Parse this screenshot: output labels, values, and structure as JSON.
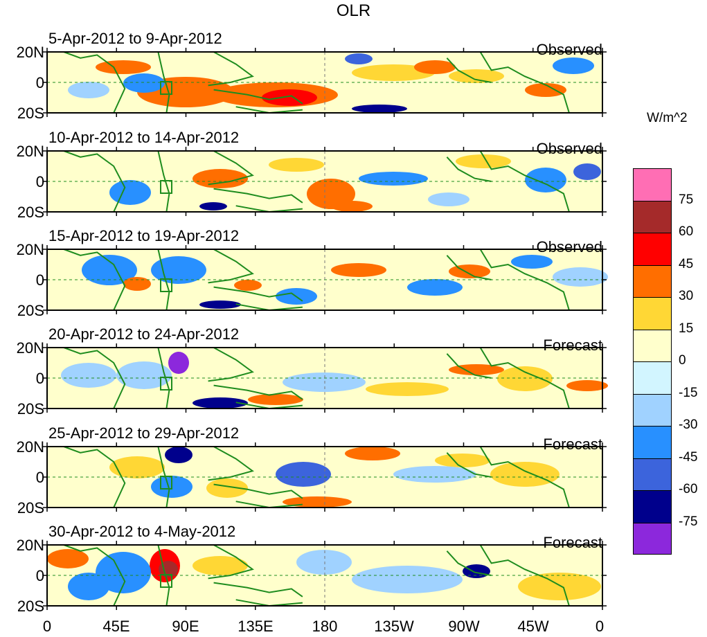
{
  "title": "OLR",
  "units": "W/m^2",
  "y_labels": [
    "20N",
    "0",
    "20S"
  ],
  "x_labels": [
    "0",
    "45E",
    "90E",
    "135E",
    "180",
    "135W",
    "90W",
    "45W",
    "0"
  ],
  "colorbar": {
    "colors": [
      "#ff6eb4",
      "#a52a2a",
      "#ff0000",
      "#ff6e00",
      "#ffd735",
      "#ffffcc",
      "#d2f5ff",
      "#a0d2ff",
      "#2890ff",
      "#3c64dc",
      "#00008c",
      "#8c28dc"
    ],
    "labels": [
      "75",
      "60",
      "45",
      "30",
      "15",
      "0",
      "-15",
      "-30",
      "-45",
      "-60",
      "-75"
    ]
  },
  "panels": [
    {
      "dates": "5-Apr-2012 to 9-Apr-2012",
      "type": "Observed"
    },
    {
      "dates": "10-Apr-2012 to 14-Apr-2012",
      "type": "Observed"
    },
    {
      "dates": "15-Apr-2012 to 19-Apr-2012",
      "type": "Observed"
    },
    {
      "dates": "20-Apr-2012 to 24-Apr-2012",
      "type": "Forecast"
    },
    {
      "dates": "25-Apr-2012 to 29-Apr-2012",
      "type": "Forecast"
    },
    {
      "dates": "30-Apr-2012 to 4-May-2012",
      "type": "Forecast"
    }
  ]
}
